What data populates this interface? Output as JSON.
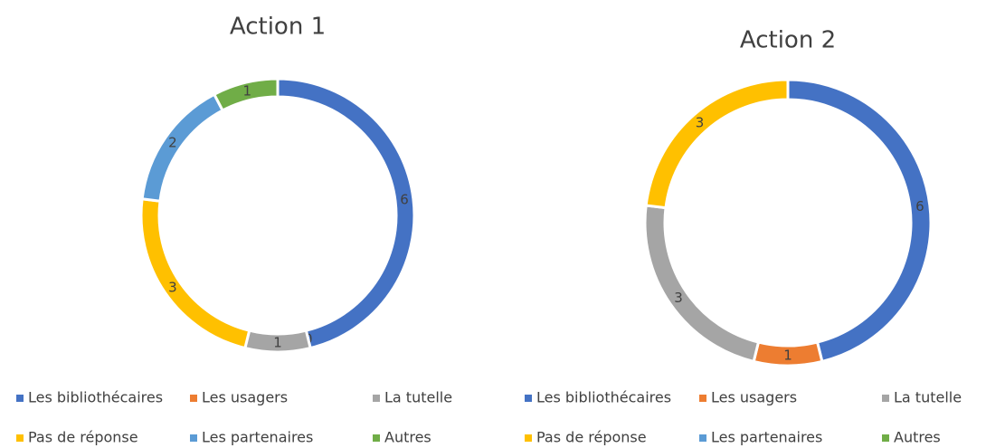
{
  "chart_data": [
    {
      "type": "donut",
      "title": "Action 1",
      "categories": [
        "Les bibliothécaires",
        "Les usagers",
        "La tutelle",
        "Pas de réponse",
        "Les partenaires",
        "Autres"
      ],
      "values": [
        6,
        0,
        1,
        3,
        2,
        1
      ],
      "colors": [
        "#4472c4",
        "#ed7d31",
        "#a5a5a5",
        "#ffc000",
        "#5b9bd5",
        "#70ad47"
      ],
      "legend": "bottom"
    },
    {
      "type": "donut",
      "title": "Action 2",
      "categories": [
        "Les bibliothécaires",
        "Les usagers",
        "La tutelle",
        "Pas de réponse",
        "Les partenaires",
        "Autres"
      ],
      "values": [
        6,
        1,
        3,
        3,
        0,
        0
      ],
      "value_labels": [
        "6",
        "1",
        "3",
        "3",
        null,
        null
      ],
      "colors": [
        "#4472c4",
        "#ed7d31",
        "#a5a5a5",
        "#ffc000",
        "#5b9bd5",
        "#70ad47"
      ],
      "legend": "bottom"
    }
  ]
}
